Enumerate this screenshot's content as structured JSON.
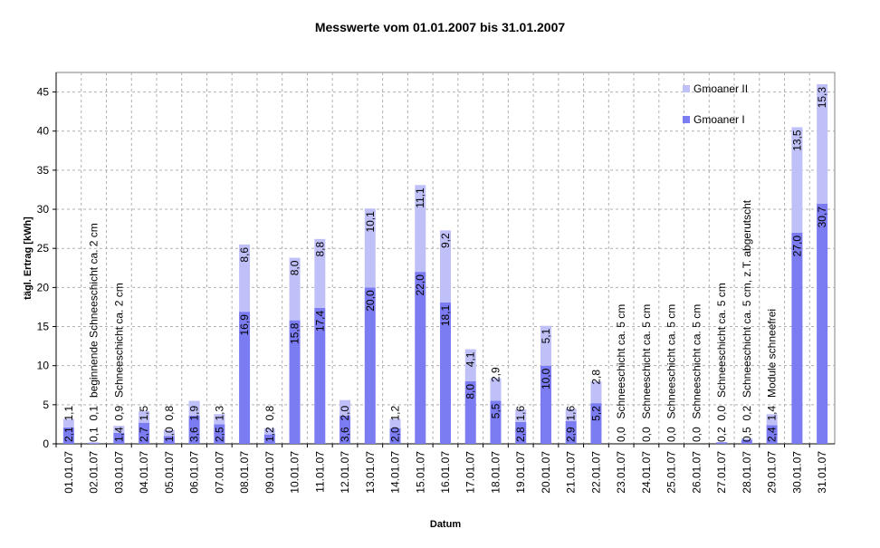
{
  "chart_data": {
    "type": "bar",
    "stacked": true,
    "title": "Messwerte vom 01.01.2007 bis 31.01.2007",
    "xlabel": "Datum",
    "ylabel": "tägl. Ertrag [kWh]",
    "ylim": [
      0,
      47.5
    ],
    "yticks": [
      "0",
      "5",
      "10",
      "15",
      "20",
      "25",
      "30",
      "35",
      "40",
      "45"
    ],
    "grid": true,
    "legend_position": "top-right",
    "categories": [
      "01.01.07",
      "02.01.07",
      "03.01.07",
      "04.01.07",
      "05.01.07",
      "06.01.07",
      "07.01.07",
      "08.01.07",
      "09.01.07",
      "10.01.07",
      "11.01.07",
      "12.01.07",
      "13.01.07",
      "14.01.07",
      "15.01.07",
      "16.01.07",
      "17.01.07",
      "18.01.07",
      "19.01.07",
      "20.01.07",
      "21.01.07",
      "22.01.07",
      "23.01.07",
      "24.01.07",
      "25.01.07",
      "26.01.07",
      "27.01.07",
      "28.01.07",
      "29.01.07",
      "30.01.07",
      "31.01.07"
    ],
    "series": [
      {
        "name": "Gmoaner I",
        "color": "#7b7bf2",
        "values": [
          2.1,
          0.1,
          1.4,
          2.7,
          1.0,
          3.6,
          2.5,
          16.9,
          1.2,
          15.8,
          17.4,
          3.6,
          20.0,
          2.0,
          22.0,
          18.1,
          8.0,
          5.5,
          2.8,
          10.0,
          2.9,
          5.2,
          0.0,
          0.0,
          0.0,
          0.0,
          0.2,
          0.5,
          2.4,
          27.0,
          30.7
        ],
        "labels": [
          "2,1",
          "0,1",
          "1,4",
          "2,7",
          "1,0",
          "3,6",
          "2,5",
          "16,9",
          "1,2",
          "15,8",
          "17,4",
          "3,6",
          "20,0",
          "2,0",
          "22,0",
          "18,1",
          "8,0",
          "5,5",
          "2,8",
          "10,0",
          "2,9",
          "5,2",
          "0,0",
          "0,0",
          "0,0",
          "0,0",
          "0,2",
          "0,5",
          "2,4",
          "27,0",
          "30,7"
        ]
      },
      {
        "name": "Gmoaner II",
        "color": "#c0c0f8",
        "values": [
          1.1,
          0.1,
          0.9,
          1.5,
          0.8,
          1.9,
          1.3,
          8.6,
          0.8,
          8.0,
          8.8,
          2.0,
          10.1,
          1.2,
          11.1,
          9.2,
          4.1,
          2.9,
          1.6,
          5.1,
          1.6,
          2.8,
          0,
          0,
          0,
          0,
          0.0,
          0.2,
          1.4,
          13.5,
          15.3
        ],
        "labels": [
          "1,1",
          "0,1",
          "0,9",
          "1,5",
          "0,8",
          "1,9",
          "1,3",
          "8,6",
          "0,8",
          "8,0",
          "8,8",
          "2,0",
          "10,1",
          "1,2",
          "11,1",
          "9,2",
          "4,1",
          "2,9",
          "1,6",
          "5,1",
          "1,6",
          "2,8",
          "",
          "",
          "",
          "",
          "0,0",
          "0,2",
          "1,4",
          "13,5",
          "15,3"
        ]
      }
    ],
    "annotations": [
      "",
      "beginnende Schneeschicht ca. 2 cm",
      "Schneeschicht ca. 2 cm",
      "",
      "",
      "",
      "",
      "",
      "",
      "",
      "",
      "",
      "",
      "",
      "",
      "",
      "",
      "",
      "",
      "",
      "",
      "",
      "Schneeschicht ca. 5 cm",
      "Schneeschicht ca. 5 cm",
      "Schneeschicht ca. 5 cm",
      "Schneeschicht ca. 5 cm",
      "Schneeschicht ca. 5 cm",
      "Schneeschicht ca. 5 cm, z.T. abgerutscht",
      "Module schneefrei",
      "",
      ""
    ]
  }
}
